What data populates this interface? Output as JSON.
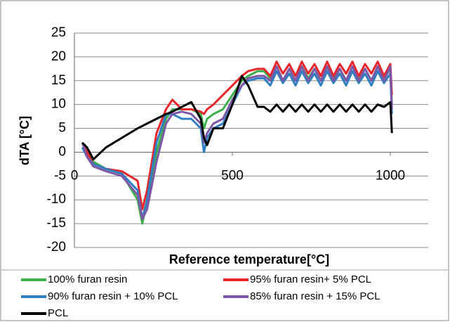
{
  "chart_data": {
    "type": "line",
    "x_label": "Reference temperature[°C]",
    "y_label": "dTA [°C]",
    "x": [
      25,
      40,
      60,
      100,
      150,
      200,
      215,
      230,
      260,
      290,
      310,
      340,
      370,
      400,
      410,
      420,
      440,
      470,
      500,
      530,
      550,
      580,
      600,
      620,
      640,
      660,
      680,
      700,
      720,
      740,
      760,
      780,
      800,
      820,
      840,
      860,
      880,
      900,
      920,
      940,
      960,
      980,
      1000,
      1005
    ],
    "series": [
      {
        "name": "100% furan resin",
        "color": "#3cb04a",
        "values": [
          2,
          0,
          -2,
          -3.5,
          -4.5,
          -10,
          -15,
          -10,
          0,
          7,
          9,
          9,
          9,
          8,
          5,
          7,
          8,
          9,
          12,
          15,
          16,
          17,
          17,
          15.5,
          18,
          15,
          17.5,
          15,
          18,
          15.5,
          17.5,
          15,
          18,
          15.5,
          17.5,
          15,
          18,
          15.5,
          17.5,
          15,
          18,
          15.5,
          17.5,
          10
        ]
      },
      {
        "name": "95% furan resin+ 5% PCL",
        "color": "#e8262a",
        "values": [
          2,
          0,
          -2.5,
          -3.5,
          -4,
          -6,
          -12,
          -8,
          4,
          9,
          11,
          9,
          9,
          8.5,
          8,
          9,
          10,
          12,
          14,
          16,
          17,
          17.5,
          17.5,
          16,
          19,
          16.5,
          18.5,
          16,
          19,
          16.5,
          18.5,
          16,
          19,
          16,
          18.5,
          16.5,
          19,
          16,
          18.5,
          16.5,
          19,
          16,
          18.5,
          12
        ]
      },
      {
        "name": "90% furan resin + 10% PCL",
        "color": "#2f7fc1",
        "values": [
          1,
          -1,
          -2.5,
          -3.5,
          -4.5,
          -8,
          -14,
          -10,
          2,
          8,
          8,
          7,
          7,
          5,
          0,
          3,
          5,
          6,
          10,
          14,
          15,
          15.5,
          15.5,
          14,
          17,
          14.5,
          16.5,
          14,
          17,
          14.5,
          16.5,
          14,
          17,
          14.5,
          16.5,
          14,
          17,
          14.5,
          16.5,
          14,
          17,
          14.5,
          16.5,
          8
        ]
      },
      {
        "name": "85% furan resin + 15% PCL",
        "color": "#7e57a8",
        "values": [
          2,
          -1,
          -3,
          -4,
          -5,
          -9,
          -14,
          -12,
          -2,
          6,
          8,
          8.5,
          8,
          6,
          2,
          4,
          6,
          7,
          11,
          14,
          15.5,
          16,
          16,
          15,
          18,
          15,
          17.5,
          15,
          18,
          15,
          17.5,
          15,
          18,
          15,
          17.5,
          15,
          18,
          15,
          17.5,
          15,
          18,
          15,
          18,
          9
        ]
      },
      {
        "name": "PCL",
        "color": "#000000",
        "values": [
          2,
          1,
          -1.5,
          1,
          3,
          5,
          5.5,
          6,
          7,
          8,
          8.5,
          9.5,
          10.5,
          7,
          3,
          1.5,
          5,
          5,
          10,
          16,
          14,
          9.5,
          9.5,
          8.5,
          10,
          8.5,
          10,
          8.5,
          10,
          8.5,
          10,
          8.5,
          10,
          8.5,
          10,
          8.5,
          10,
          8.5,
          10,
          8.5,
          10,
          9.5,
          10.5,
          4
        ]
      }
    ],
    "xlim": [
      0,
      1120
    ],
    "xticks": [
      0,
      500,
      1000
    ],
    "ylim": [
      -20,
      25
    ],
    "yticks": [
      -20,
      -15,
      -10,
      -5,
      0,
      5,
      10,
      15,
      20,
      25
    ],
    "grid": true,
    "legend": "bottom"
  }
}
